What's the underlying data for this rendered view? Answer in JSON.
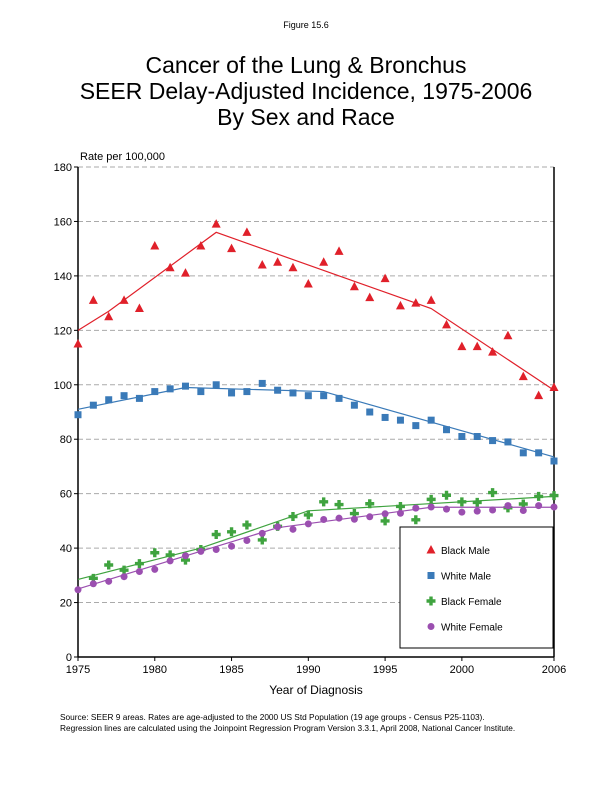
{
  "figure_label": "Figure 15.6",
  "source_note": [
    "Source: SEER 9 areas. Rates are age-adjusted to the 2000 US Std Population (19 age groups - Census P25-1103).",
    "Regression lines are calculated using the Joinpoint Regression Program Version 3.3.1, April 2008, National Cancer Institute."
  ],
  "chart_data": {
    "type": "scatter",
    "title": [
      "Cancer of the Lung & Bronchus",
      "SEER Delay-Adjusted Incidence, 1975-2006",
      "By Sex and Race"
    ],
    "xlabel": "Year of Diagnosis",
    "ylabel": "Rate per 100,000",
    "xlim": [
      1975,
      2006
    ],
    "ylim": [
      0,
      180
    ],
    "xticks": [
      1975,
      1980,
      1985,
      1990,
      1995,
      2000,
      2006
    ],
    "yticks": [
      0,
      20,
      40,
      60,
      80,
      100,
      120,
      140,
      160,
      180
    ],
    "grid": "horizontal dashed",
    "legend": "bottom-right",
    "x": [
      1975,
      1976,
      1977,
      1978,
      1979,
      1980,
      1981,
      1982,
      1983,
      1984,
      1985,
      1986,
      1987,
      1988,
      1989,
      1990,
      1991,
      1992,
      1993,
      1994,
      1995,
      1996,
      1997,
      1998,
      1999,
      2000,
      2001,
      2002,
      2003,
      2004,
      2005,
      2006
    ],
    "series": [
      {
        "name": "Black Male",
        "color": "#e0202a",
        "marker": "triangle",
        "values": [
          115,
          131,
          125,
          131,
          128,
          151,
          143,
          141,
          151,
          159,
          150,
          156,
          144,
          145,
          143,
          137,
          145,
          149,
          136,
          132,
          139,
          129,
          130,
          131,
          122,
          114,
          114,
          112,
          118,
          103,
          96,
          99
        ],
        "trend": [
          [
            1975,
            120
          ],
          [
            1977,
            127
          ],
          [
            1984,
            156
          ],
          [
            1998,
            128
          ],
          [
            2006,
            98
          ]
        ]
      },
      {
        "name": "White Male",
        "color": "#3a7ab8",
        "marker": "square",
        "values": [
          89,
          92.5,
          94.5,
          96,
          95,
          97.5,
          98.5,
          99.5,
          97.5,
          100,
          97,
          97.5,
          100.5,
          98,
          97,
          96,
          96,
          95,
          92.5,
          90,
          88,
          87,
          85,
          87,
          83.5,
          81,
          81,
          79.5,
          79,
          75,
          75,
          72
        ],
        "trend": [
          [
            1975,
            91
          ],
          [
            1982,
            99
          ],
          [
            1991,
            97.5
          ],
          [
            2006,
            73.5
          ]
        ]
      },
      {
        "name": "Black Female",
        "color": "#3fa33f",
        "marker": "plus",
        "values": [
          null,
          28.9,
          33.8,
          31.9,
          34.3,
          38.3,
          37.5,
          35.6,
          39.5,
          45,
          46,
          48.5,
          43,
          48,
          51.6,
          52.2,
          57,
          56,
          52.7,
          56.3,
          50,
          55.3,
          50.4,
          57.9,
          59.4,
          57,
          56.8,
          60.4,
          54.8,
          56.2,
          59,
          59.3
        ],
        "trend": [
          [
            1975,
            28.5
          ],
          [
            1983,
            40
          ],
          [
            1990,
            53.7
          ],
          [
            2006,
            59
          ]
        ]
      },
      {
        "name": "White Female",
        "color": "#9b4fb0",
        "marker": "circle",
        "values": [
          24.7,
          26.9,
          27.8,
          29.5,
          31.4,
          32.2,
          35.3,
          37.2,
          38.8,
          39.5,
          40.7,
          42.8,
          45.4,
          47.8,
          46.9,
          48.9,
          50.5,
          51,
          50.6,
          51.5,
          52.6,
          52.8,
          54.7,
          55.1,
          54.3,
          53.2,
          53.6,
          54,
          55.6,
          53.8,
          55.6,
          55.1
        ],
        "trend": [
          [
            1975,
            25
          ],
          [
            1988,
            47.5
          ],
          [
            1998,
            55
          ],
          [
            2006,
            55
          ]
        ]
      }
    ]
  }
}
